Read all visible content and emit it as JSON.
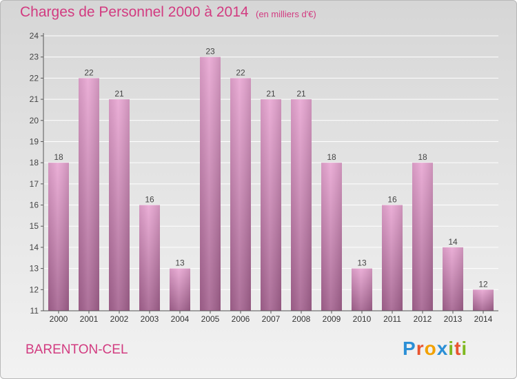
{
  "title": "Charges de Personnel 2000 à 2014",
  "subtitle": "(en milliers d'€)",
  "commune": "BARENTON-CEL",
  "logo": {
    "text": "Proxiti",
    "letters": [
      "P",
      "r",
      "o",
      "x",
      "i",
      "t",
      "i"
    ],
    "colors": [
      "#2b8fd6",
      "#e8542f",
      "#f2a100",
      "#2b8fd6",
      "#7fb820",
      "#e8542f",
      "#7fb820"
    ]
  },
  "colors": {
    "bar_top": "#e8a6d2",
    "bar_bottom": "#a4628f",
    "accent": "#d23b80",
    "grid": "#ffffff"
  },
  "chart_data": {
    "type": "bar",
    "title": "Charges de Personnel 2000 à 2014",
    "xlabel": "",
    "ylabel": "",
    "categories": [
      "2000",
      "2001",
      "2002",
      "2003",
      "2004",
      "2005",
      "2006",
      "2007",
      "2008",
      "2009",
      "2010",
      "2011",
      "2012",
      "2013",
      "2014"
    ],
    "values": [
      18,
      22,
      21,
      16,
      13,
      23,
      22,
      21,
      21,
      18,
      13,
      16,
      18,
      14,
      12
    ],
    "ylim": [
      11,
      24
    ],
    "yticks": [
      11,
      12,
      13,
      14,
      15,
      16,
      17,
      18,
      19,
      20,
      21,
      22,
      23,
      24
    ],
    "grid": true
  }
}
